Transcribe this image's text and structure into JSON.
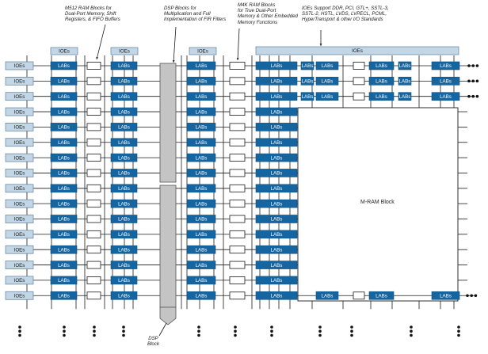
{
  "labels": {
    "m512": [
      "M512 RAM Blocks for",
      "Dual-Port Memory, Shift",
      "Registers, & FIFO Buffers"
    ],
    "dsp": [
      "DSP Blocks for",
      "Multiplication and Full",
      "Implementation of FIR Filters"
    ],
    "m4k": [
      "M4K RAM Blocks",
      "for True Dual-Port",
      "Memory & Other Embedded",
      "Memory Functions"
    ],
    "ioe_support": [
      "IOEs Support DDR, PCI, GTL+, SSTL-3,",
      "SSTL-2, HSTL, LVDS, LVPECL, PCML,",
      "HyperTransport & other I/O Standards"
    ],
    "dsp_block": [
      "DSP",
      "Block"
    ],
    "mram": "M-RAM Block"
  },
  "block_text": {
    "lab": "LABs",
    "ioe": "IOEs"
  },
  "colors": {
    "lab": "#1565a0",
    "lab_edge": "#0d4f80",
    "ioe_fill": "#c3d6e6",
    "ioe_edge": "#5f7f9c",
    "dsp_fill": "#c4c4c4",
    "line": "#1a1a1a"
  },
  "continuation": "dots-icon"
}
